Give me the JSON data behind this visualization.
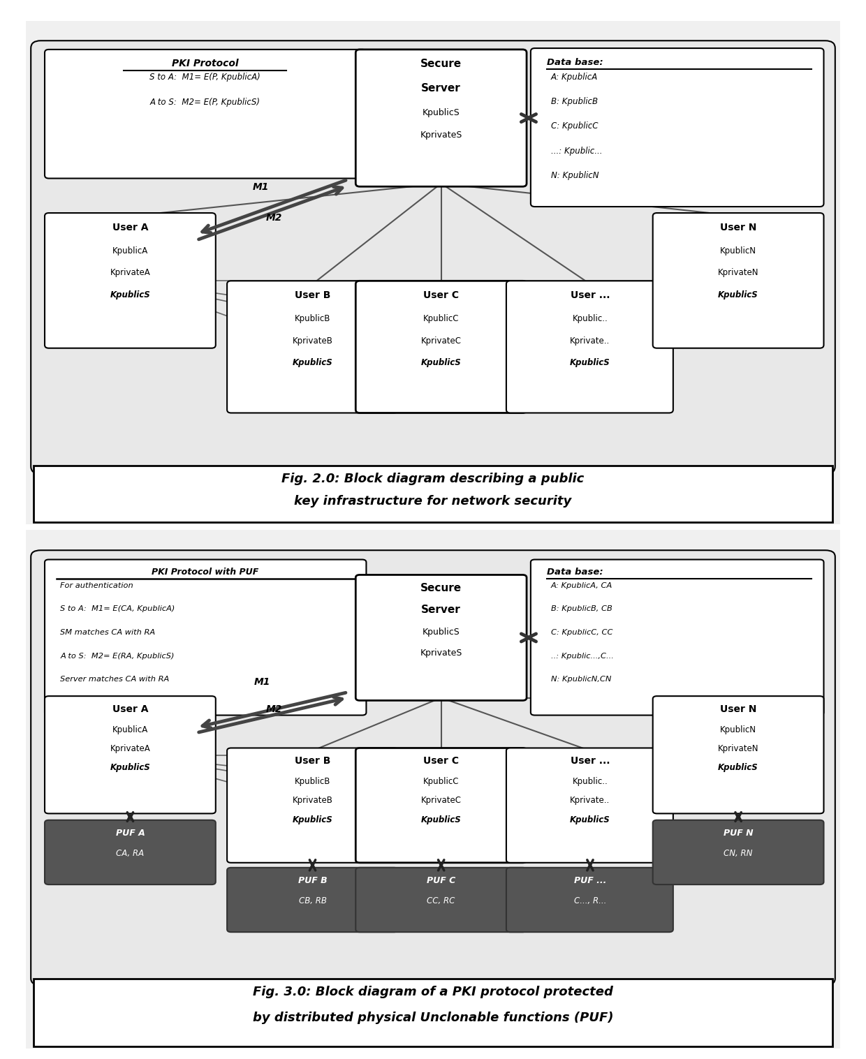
{
  "fig_width": 12.4,
  "fig_height": 15.17,
  "bg_color": "#ffffff",
  "diagram1": {
    "title_line1": "Fig. 2.0: Block diagram describing a public",
    "title_line2": "key infrastructure for network security",
    "pki_title": "PKI Protocol",
    "pki_line1": "S to A:  M1= E(P, KpublicA)",
    "pki_line2": "A to S:  M2= E(P, KpublicS)",
    "db_title": "Data base:",
    "db_lines": [
      "A: KpublicA",
      "B: KpublicB",
      "C: KpublicC",
      "...: Kpublic...",
      "N: KpublicN"
    ],
    "server_lines": [
      "Secure",
      "Server",
      "KpublicS",
      "KprivateS"
    ],
    "userA_lines": [
      "User A",
      "KpublicA",
      "KprivateA",
      "KpublicS"
    ],
    "userB_lines": [
      "User B",
      "KpublicB",
      "KprivateB",
      "KpublicS"
    ],
    "userC_lines": [
      "User C",
      "KpublicC",
      "KprivateC",
      "KpublicS"
    ],
    "userDots_lines": [
      "User ...",
      "Kpublic..",
      "Kprivate..",
      "KpublicS"
    ],
    "userN_lines": [
      "User N",
      "KpublicN",
      "KprivateN",
      "KpublicS"
    ]
  },
  "diagram2": {
    "title_line1": "Fig. 3.0: Block diagram of a PKI protocol protected",
    "title_line2": "by distributed physical Unclonable functions (PUF)",
    "pki_title": "PKI Protocol with PUF",
    "pki_lines": [
      "For authentication",
      "S to A:  M1= E(CA, KpublicA)",
      "SM matches CA with RA",
      "A to S:  M2= E(RA, KpublicS)",
      "Server matches CA with RA"
    ],
    "db_title": "Data base:",
    "db_lines": [
      "A: KpublicA, CA",
      "B: KpublicB, CB",
      "C: KpublicC, CC",
      "..: Kpublic...,C...",
      "N: KpublicN,CN"
    ],
    "server_lines": [
      "Secure",
      "Server",
      "KpublicS",
      "KprivateS"
    ],
    "userA_lines": [
      "User A",
      "KpublicA",
      "KprivateA",
      "KpublicS"
    ],
    "userB_lines": [
      "User B",
      "KpublicB",
      "KprivateB",
      "KpublicS"
    ],
    "userC_lines": [
      "User C",
      "KpublicC",
      "KprivateC",
      "KpublicS"
    ],
    "userDots_lines": [
      "User ...",
      "Kpublic..",
      "Kprivate..",
      "KpublicS"
    ],
    "userN_lines": [
      "User N",
      "KpublicN",
      "KprivateN",
      "KpublicS"
    ],
    "pufA_lines": [
      "PUF A",
      "CA, RA"
    ],
    "pufB_lines": [
      "PUF B",
      "CB, RB"
    ],
    "pufC_lines": [
      "PUF C",
      "CC, RC"
    ],
    "pufDots_lines": [
      "PUF ...",
      "C..., R..."
    ],
    "pufN_lines": [
      "PUF N",
      "CN, RN"
    ]
  }
}
